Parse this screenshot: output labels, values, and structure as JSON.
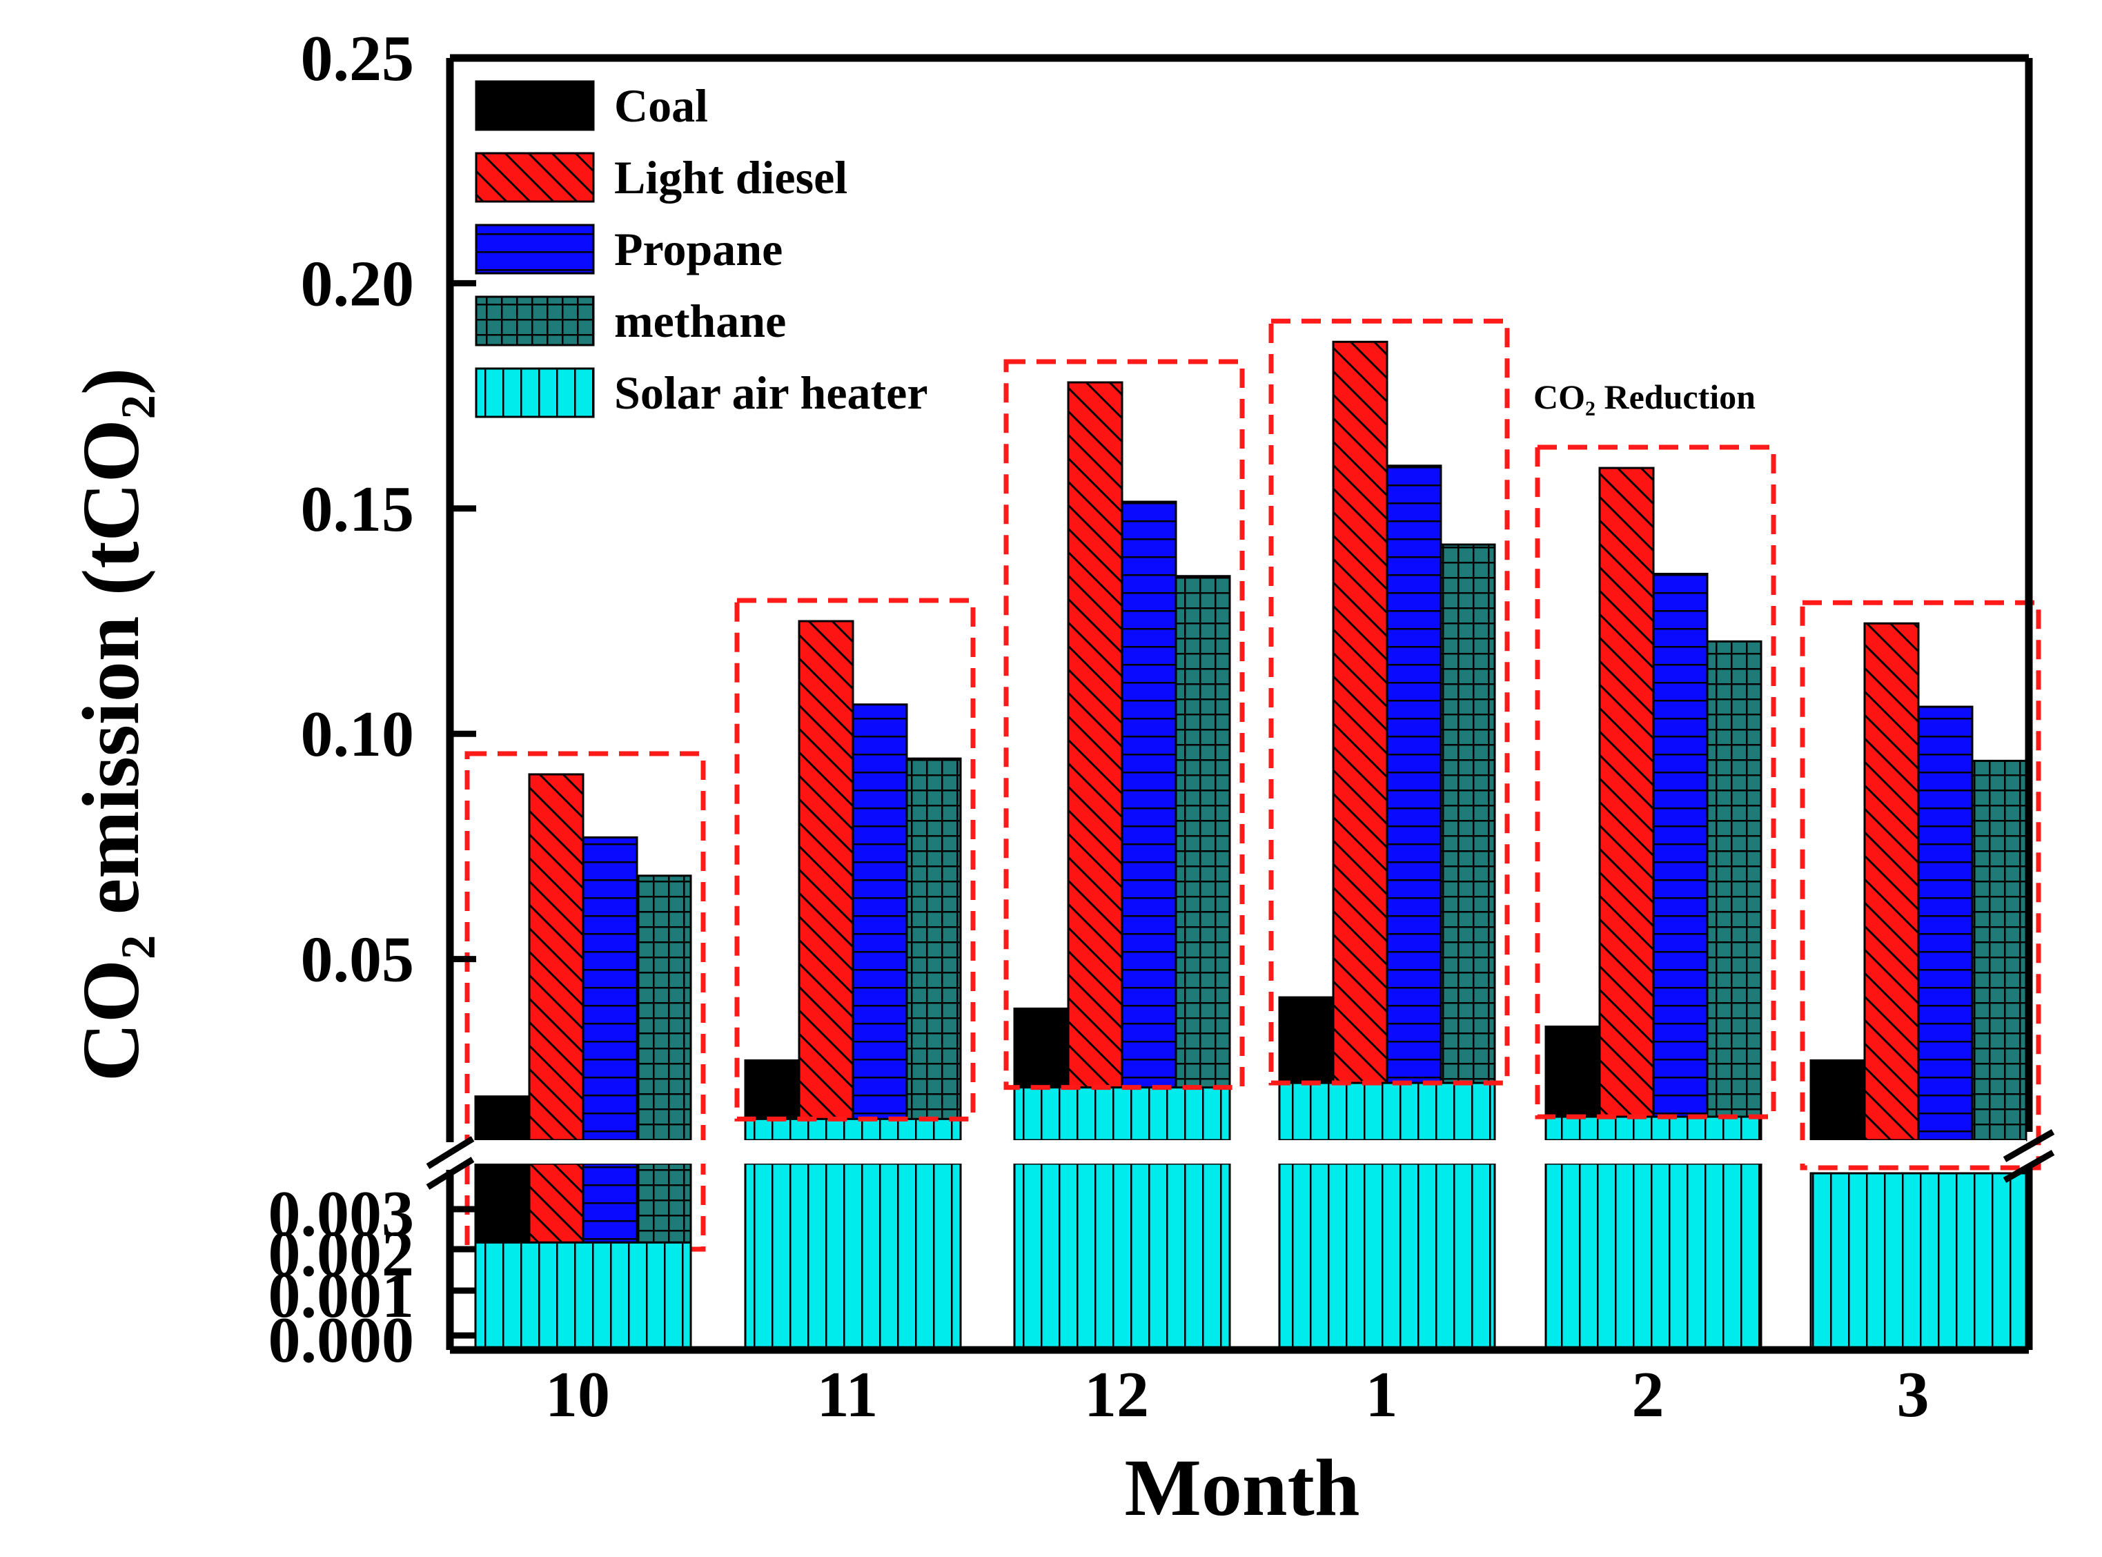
{
  "chart_data": {
    "type": "bar",
    "title": "",
    "xlabel": "Month",
    "ylabel": "CO₂ emission (tCO₂)",
    "axis_break": true,
    "lower_axis": {
      "range": [
        0,
        0.003
      ],
      "ticks": [
        "0.000",
        "0.001",
        "0.002",
        "0.003"
      ]
    },
    "upper_axis": {
      "range": [
        0.0,
        0.25
      ],
      "ticks": [
        "0.05",
        "0.10",
        "0.15",
        "0.20",
        "0.25"
      ]
    },
    "categories": [
      "10",
      "11",
      "12",
      "1",
      "2",
      "3"
    ],
    "series": [
      {
        "name": "Coal",
        "color": "#000000",
        "pattern": "solid",
        "values": [
          0.0195,
          0.0275,
          0.039,
          0.0415,
          0.035,
          0.0275
        ]
      },
      {
        "name": "Light diesel",
        "color": "#ff0000",
        "pattern": "diagonal",
        "values": [
          0.091,
          0.125,
          0.178,
          0.187,
          0.159,
          0.1245
        ]
      },
      {
        "name": "Propane",
        "color": "#0000ff",
        "pattern": "horizontal",
        "values": [
          0.077,
          0.1065,
          0.1515,
          0.1595,
          0.1355,
          0.106
        ]
      },
      {
        "name": "methane",
        "color": "#1e7b78",
        "pattern": "grid",
        "values": [
          0.0685,
          0.0945,
          0.135,
          0.142,
          0.1205,
          0.094
        ]
      },
      {
        "name": "Solar air heater",
        "color": "#00e8e8",
        "pattern": "vertical",
        "values": [
          0.0022,
          0.0145,
          0.0215,
          0.0225,
          0.015,
          0.003
        ]
      }
    ],
    "legend": "top-left",
    "annotations": [
      {
        "text": "CO₂ Reduction",
        "category": "2"
      }
    ]
  }
}
